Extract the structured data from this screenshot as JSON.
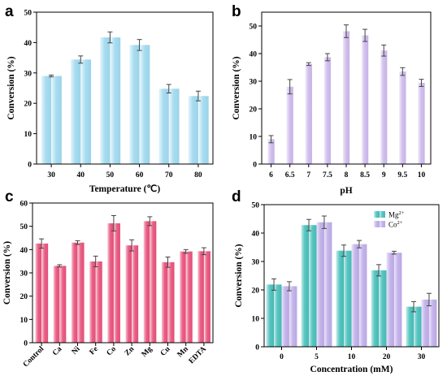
{
  "colors": {
    "panel_a": "#a8dcef",
    "panel_b": "#d2c0ec",
    "panel_c": "#ea5f85",
    "mg_series": "#58c6c2",
    "co_series": "#c5b6ea",
    "error_bar": "#444444"
  },
  "chart_data": [
    {
      "panel": "a",
      "type": "bar",
      "bar_style": "paired",
      "xlabel": "Temperature (℃)",
      "ylabel": "Conversion (%)",
      "categories": [
        "30",
        "40",
        "50",
        "60",
        "70",
        "80"
      ],
      "values": [
        29,
        34.4,
        41.7,
        39.2,
        24.8,
        22.4
      ],
      "errors": [
        0.3,
        1.2,
        1.8,
        1.8,
        1.4,
        1.6
      ],
      "ylim": [
        0,
        50
      ],
      "yticks": [
        0,
        10,
        20,
        30,
        40,
        50
      ],
      "color": "#a8dcef"
    },
    {
      "panel": "b",
      "type": "bar",
      "bar_style": "single",
      "xlabel": "pH",
      "ylabel": "Conversion (%)",
      "categories": [
        "6",
        "6.5",
        "7",
        "7.5",
        "8",
        "8.5",
        "9",
        "9.5",
        "10"
      ],
      "values": [
        9,
        28,
        36.2,
        38.7,
        48.1,
        46.6,
        41.1,
        33.5,
        29.4
      ],
      "errors": [
        1.3,
        2.6,
        0.5,
        1.3,
        2.3,
        2.2,
        2.0,
        1.4,
        1.3
      ],
      "ylim": [
        0,
        55
      ],
      "yticks": [
        0,
        10,
        20,
        30,
        40,
        50
      ],
      "color": "#d2c0ec"
    },
    {
      "panel": "c",
      "type": "bar",
      "bar_style": "paired",
      "xlabel": "",
      "ylabel": "Conversion (%)",
      "categories": [
        "Control",
        "Ca",
        "Ni",
        "Fe",
        "Co",
        "Zn",
        "Mg",
        "Cu",
        "Mn",
        "EDTA"
      ],
      "values": [
        42.6,
        33,
        43,
        34.9,
        51.3,
        41.8,
        52.2,
        34.6,
        39.2,
        39.3
      ],
      "errors": [
        2.0,
        0.5,
        0.8,
        2.3,
        3.3,
        2.4,
        1.9,
        2.2,
        0.8,
        1.5
      ],
      "ylim": [
        0,
        60
      ],
      "yticks": [
        0,
        10,
        20,
        30,
        40,
        50,
        60
      ],
      "color": "#ea5f85"
    },
    {
      "panel": "d",
      "type": "bar",
      "bar_style": "grouped",
      "xlabel": "Concentration (mM)",
      "ylabel": "Conversion (%)",
      "categories": [
        "0",
        "5",
        "10",
        "20",
        "30"
      ],
      "series": [
        {
          "name": "Mg2+",
          "values": [
            21.9,
            42.8,
            33.8,
            26.9,
            14.1
          ],
          "errors": [
            2.0,
            2.0,
            2.0,
            2.0,
            1.8
          ]
        },
        {
          "name": "Co2+",
          "values": [
            21.3,
            43.8,
            36.1,
            33.1,
            16.6
          ],
          "errors": [
            1.6,
            2.2,
            1.3,
            0.5,
            2.2
          ]
        }
      ],
      "legend_labels": [
        {
          "base": "Mg",
          "sup": "2+"
        },
        {
          "base": "Co",
          "sup": "2+"
        }
      ],
      "legend_position": "top-right",
      "ylim": [
        0,
        50
      ],
      "yticks": [
        0,
        10,
        20,
        30,
        40,
        50
      ]
    }
  ]
}
